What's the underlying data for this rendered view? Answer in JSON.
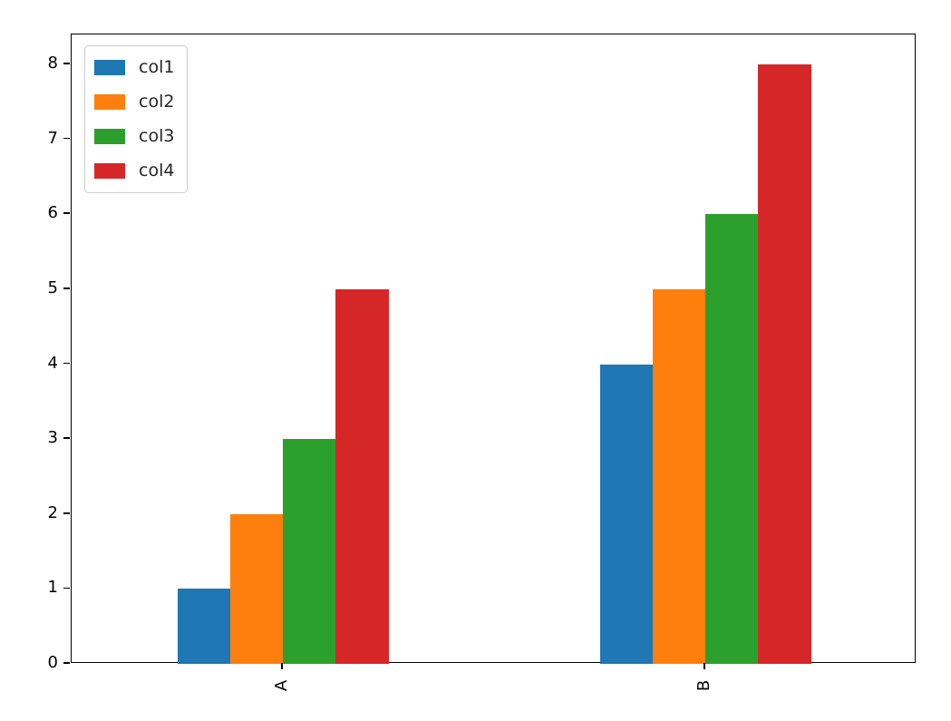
{
  "chart_data": {
    "type": "bar",
    "title": "",
    "xlabel": "",
    "ylabel": "",
    "categories": [
      "A",
      "B"
    ],
    "series": [
      {
        "name": "col1",
        "color": "#1f77b4",
        "values": [
          1,
          4
        ]
      },
      {
        "name": "col2",
        "color": "#ff7f0e",
        "values": [
          2,
          5
        ]
      },
      {
        "name": "col3",
        "color": "#2ca02c",
        "values": [
          3,
          6
        ]
      },
      {
        "name": "col4",
        "color": "#d62728",
        "values": [
          5,
          8
        ]
      }
    ],
    "yticks": [
      "0",
      "1",
      "2",
      "3",
      "4",
      "5",
      "6",
      "7",
      "8"
    ],
    "ytick_values": [
      0,
      1,
      2,
      3,
      4,
      5,
      6,
      7,
      8
    ],
    "ylim": [
      0,
      8.4
    ],
    "grid": false,
    "legend": {
      "position": "upper left",
      "border_color": "#cccccc",
      "background": "#ffffff"
    },
    "xtick_rotation": 90,
    "axis_color": "#000000",
    "background_color": "#ffffff"
  }
}
